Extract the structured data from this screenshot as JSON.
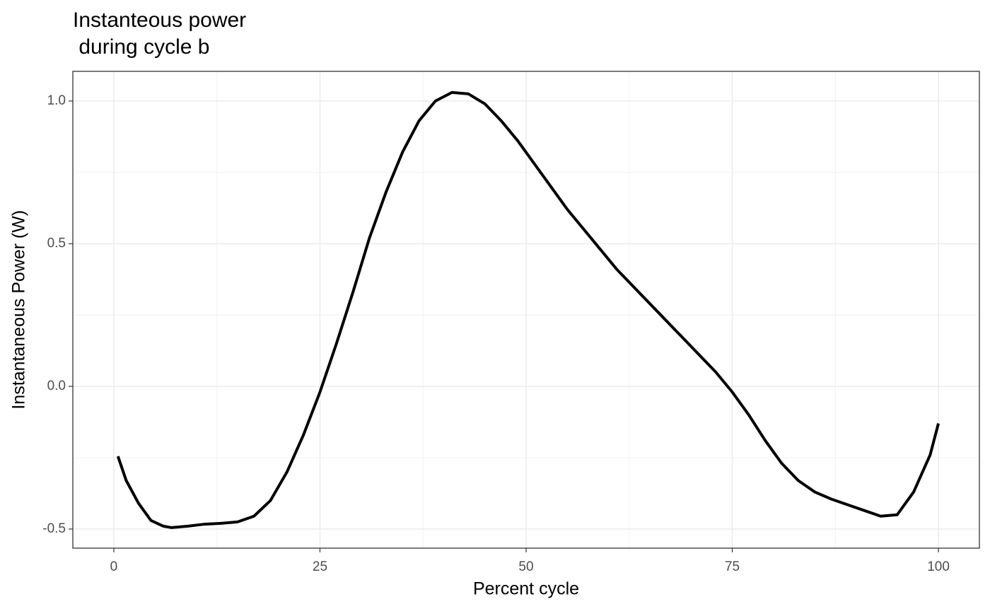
{
  "chart_data": {
    "type": "line",
    "title": "Instanteous power\n during cycle b",
    "x_label": "Percent cycle",
    "y_label": "Instantaneous Power (W)",
    "x": [
      0.5,
      1.5,
      3,
      4.5,
      6,
      7,
      9,
      11,
      13,
      15,
      17,
      19,
      21,
      23,
      25,
      27,
      29,
      31,
      33,
      35,
      37,
      39,
      41,
      43,
      45,
      47,
      49,
      51,
      53,
      55,
      57,
      59,
      61,
      63,
      65,
      67,
      69,
      71,
      73,
      75,
      77,
      79,
      81,
      83,
      85,
      87,
      89,
      91,
      93,
      95,
      97,
      99,
      100
    ],
    "series": [
      {
        "color": "#000000",
        "values": [
          -0.245,
          -0.33,
          -0.41,
          -0.47,
          -0.49,
          -0.495,
          -0.49,
          -0.483,
          -0.48,
          -0.475,
          -0.455,
          -0.4,
          -0.3,
          -0.17,
          -0.02,
          0.15,
          0.33,
          0.52,
          0.68,
          0.82,
          0.93,
          1.0,
          1.03,
          1.025,
          0.99,
          0.93,
          0.86,
          0.78,
          0.7,
          0.62,
          0.55,
          0.48,
          0.41,
          0.35,
          0.29,
          0.23,
          0.17,
          0.11,
          0.05,
          -0.02,
          -0.1,
          -0.19,
          -0.27,
          -0.33,
          -0.37,
          -0.395,
          -0.415,
          -0.435,
          -0.455,
          -0.45,
          -0.37,
          -0.24,
          -0.13
        ]
      }
    ],
    "xlim": [
      -4.97,
      104.97
    ],
    "xticks": [
      0,
      25,
      50,
      75,
      100
    ],
    "ylim": [
      -0.567,
      1.104
    ],
    "yticks": [
      {
        "value": -0.5,
        "label": "-0.5"
      },
      {
        "value": 0,
        "label": "0.0"
      },
      {
        "value": 0.5,
        "label": "0.5"
      },
      {
        "value": 1,
        "label": "1.0"
      }
    ],
    "grid": true
  }
}
